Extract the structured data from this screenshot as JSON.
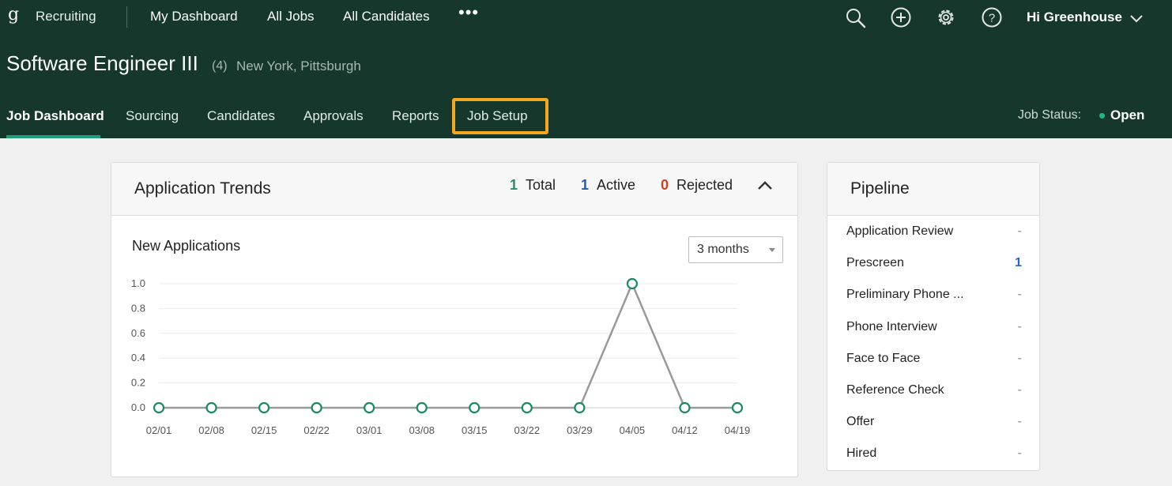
{
  "topnav": {
    "brand": "Recruiting",
    "links": [
      "My Dashboard",
      "All Jobs",
      "All Candidates"
    ],
    "more": "•••",
    "greeting": "Hi Greenhouse"
  },
  "job": {
    "title": "Software Engineer III",
    "count": "(4)",
    "locations": "New York, Pittsburgh"
  },
  "tabs": [
    "Job Dashboard",
    "Sourcing",
    "Candidates",
    "Approvals",
    "Reports",
    "Job Setup"
  ],
  "job_status": {
    "label": "Job Status:",
    "value": "Open"
  },
  "trends": {
    "title": "Application Trends",
    "stats": {
      "total": {
        "value": "1",
        "label": "Total",
        "color": "#1f8f6e"
      },
      "active": {
        "value": "1",
        "label": "Active",
        "color": "#1f5bb6"
      },
      "rejected": {
        "value": "0",
        "label": "Rejected",
        "color": "#d13f27"
      }
    },
    "subtitle": "New Applications",
    "range": "3 months"
  },
  "chart_data": {
    "type": "line",
    "x": [
      "02/01",
      "02/08",
      "02/15",
      "02/22",
      "03/01",
      "03/08",
      "03/15",
      "03/22",
      "03/29",
      "04/05",
      "04/12",
      "04/19"
    ],
    "series": [
      {
        "values": [
          0,
          0,
          0,
          0,
          0,
          0,
          0,
          0,
          0,
          1,
          0,
          0
        ]
      }
    ],
    "yticks": [
      "0.0",
      "0.2",
      "0.4",
      "0.6",
      "0.8",
      "1.0"
    ],
    "ylim": [
      0,
      1
    ],
    "grid": true,
    "line_color": "#999999",
    "marker_color": "#1a8a66"
  },
  "pipeline": {
    "title": "Pipeline",
    "stages": [
      {
        "name": "Application Review",
        "value": "-"
      },
      {
        "name": "Prescreen",
        "value": "1"
      },
      {
        "name": "Preliminary Phone ...",
        "value": "-"
      },
      {
        "name": "Phone Interview",
        "value": "-"
      },
      {
        "name": "Face to Face",
        "value": "-"
      },
      {
        "name": "Reference Check",
        "value": "-"
      },
      {
        "name": "Offer",
        "value": "-"
      },
      {
        "name": "Hired",
        "value": "-"
      }
    ]
  },
  "icons": [
    "search-icon",
    "add-icon",
    "settings-icon",
    "help-icon",
    "chevron-down-icon",
    "chevron-up-icon"
  ]
}
